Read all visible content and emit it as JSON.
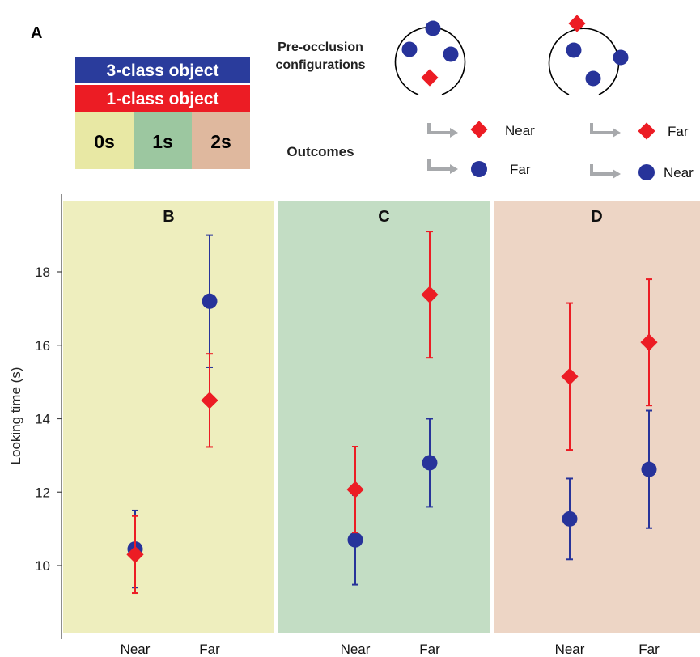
{
  "colors": {
    "three_class": "#27339a",
    "one_class": "#ec1c24",
    "panel_0s": "#eeeebe",
    "panel_1s": "#c3ddc4",
    "panel_2s": "#edd5c5",
    "legend_0s": "#e8e8a4",
    "legend_1s": "#9cc7a0",
    "legend_2s": "#dfb89e",
    "arrow": "#a7a9ac",
    "axis": "#444444"
  },
  "legend": {
    "panel_letter": "A",
    "three_class": "3-class object",
    "one_class": "1-class object",
    "delays": [
      "0s",
      "1s",
      "2s"
    ]
  },
  "top": {
    "pre_occlusion_line1": "Pre-occlusion",
    "pre_occlusion_line2": "configurations",
    "outcomes": "Outcomes",
    "config1": {
      "near_diamond": "Near",
      "far_circle": "Far"
    },
    "config2": {
      "far_diamond": "Far",
      "near_circle": "Near"
    }
  },
  "chart_data": {
    "type": "scatter",
    "ylabel": "Looking time (s)",
    "ylim": [
      8.0,
      20.0
    ],
    "yticks": [
      10,
      12,
      14,
      16,
      18
    ],
    "categories": [
      "Near",
      "Far"
    ],
    "panels": [
      {
        "label": "B",
        "delay": "0s",
        "series": [
          {
            "name": "3-class object",
            "marker": "circle",
            "values": [
              10.45,
              17.2
            ],
            "err": [
              1.05,
              1.8
            ]
          },
          {
            "name": "1-class object",
            "marker": "diamond",
            "values": [
              10.3,
              14.5
            ],
            "err": [
              1.05,
              1.27
            ]
          }
        ]
      },
      {
        "label": "C",
        "delay": "1s",
        "series": [
          {
            "name": "3-class object",
            "marker": "circle",
            "values": [
              10.7,
              12.8
            ],
            "err": [
              1.22,
              1.2
            ]
          },
          {
            "name": "1-class object",
            "marker": "diamond",
            "values": [
              12.07,
              17.38
            ],
            "err": [
              1.17,
              1.72
            ]
          }
        ]
      },
      {
        "label": "D",
        "delay": "2s",
        "series": [
          {
            "name": "3-class object",
            "marker": "circle",
            "values": [
              11.27,
              12.62
            ],
            "err": [
              1.1,
              1.6
            ]
          },
          {
            "name": "1-class object",
            "marker": "diamond",
            "values": [
              15.15,
              16.08
            ],
            "err": [
              2.0,
              1.72
            ]
          }
        ]
      }
    ]
  }
}
